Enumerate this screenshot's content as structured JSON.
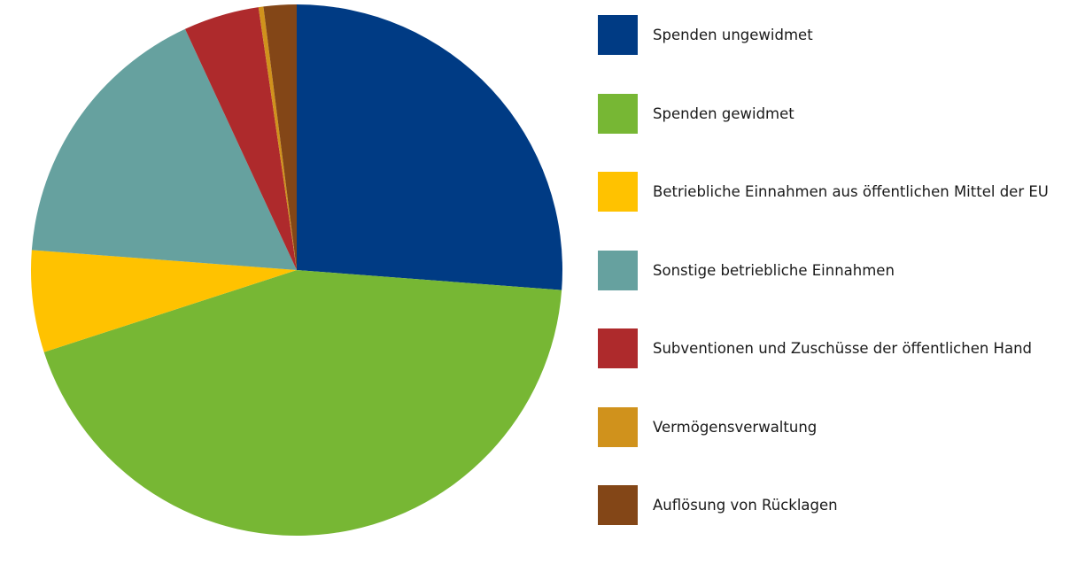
{
  "chart_data": {
    "type": "pie",
    "start_angle": "top",
    "direction": "clockwise",
    "legend_position": "right",
    "slices": [
      {
        "label": "Spenden ungewidmet",
        "value": 26.2,
        "color": "#003B84"
      },
      {
        "label": "Spenden gewidmet",
        "value": 43.8,
        "color": "#77B734"
      },
      {
        "label": "Betriebliche Einnahmen aus öffentlichen Mittel der EU",
        "value": 6.2,
        "color": "#FFC200"
      },
      {
        "label": "Sonstige betriebliche Einnahmen",
        "value": 16.9,
        "color": "#66A19F"
      },
      {
        "label": "Subventionen und Zuschüsse der öffentlichen Hand",
        "value": 4.6,
        "color": "#AE2A2C"
      },
      {
        "label": "Vermögensverwaltung",
        "value": 0.3,
        "color": "#D0921C"
      },
      {
        "label": "Auflösung von Rücklagen",
        "value": 2.0,
        "color": "#834617"
      }
    ]
  }
}
